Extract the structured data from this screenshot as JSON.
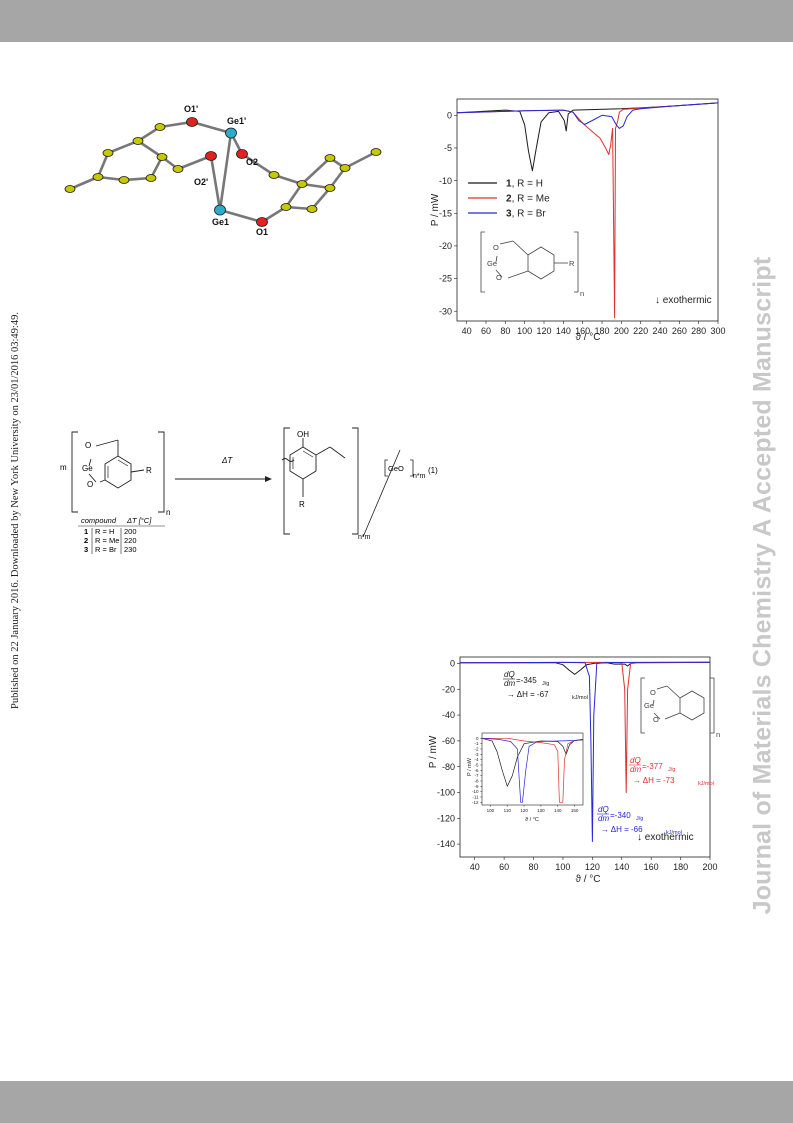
{
  "journal_watermark": "Journal of Materials Chemistry A Accepted Manuscript",
  "publication_note": "Published on 22 January 2016. Downloaded by New York University on 23/01/2016 03:49:49.",
  "crystal_structure": {
    "atom_labels": [
      "O1'",
      "Ge1'",
      "O2",
      "O2'",
      "Ge1",
      "O1"
    ],
    "colors": {
      "carbon": "#c8c800",
      "oxygen": "#e0231e",
      "germanium": "#2eaacb",
      "bond": "#777777"
    }
  },
  "reaction_scheme": {
    "m_label": "m",
    "n_label": "n",
    "ge_label": "Ge",
    "o_label": "O",
    "r_label": "R",
    "arrow_label": "ΔT",
    "oh_label": "OH",
    "product_subscript": "n*m",
    "geo_label": "GeO",
    "equation_number": "(1)",
    "table": {
      "headers": [
        "compound",
        "ΔT [°C]"
      ],
      "rows": [
        {
          "num": "1",
          "r": "R = H",
          "t": "200"
        },
        {
          "num": "2",
          "r": "R = Me",
          "t": "220"
        },
        {
          "num": "3",
          "r": "R = Br",
          "t": "230"
        }
      ]
    }
  },
  "chart_data": [
    {
      "type": "line",
      "xlabel": "ϑ / °C",
      "ylabel": "P / mW",
      "xlim": [
        30,
        300
      ],
      "ylim": [
        -31.5,
        2.5
      ],
      "xticks": [
        40,
        60,
        80,
        100,
        120,
        140,
        160,
        180,
        200,
        220,
        240,
        260,
        280,
        300
      ],
      "yticks": [
        0,
        -5,
        -10,
        -15,
        -20,
        -25,
        -30
      ],
      "legend_position": "middle-left",
      "annotation": "↓ exothermic",
      "n_label": "n",
      "series": [
        {
          "num": "1",
          "name": ", R = H",
          "color": "#1a1a1a",
          "x": [
            30,
            80,
            95,
            100,
            104,
            108,
            112,
            117,
            125,
            135,
            141,
            143,
            145,
            150,
            200,
            250,
            300
          ],
          "y": [
            0.4,
            0.8,
            0.6,
            -1.5,
            -5.5,
            -8.5,
            -5.0,
            -1.0,
            0.4,
            0.6,
            -0.8,
            -2.4,
            0.2,
            0.8,
            1.0,
            1.4,
            1.9
          ]
        },
        {
          "num": "2",
          "name": ", R = Me",
          "color": "#e03030",
          "x": [
            30,
            100,
            140,
            150,
            160,
            170,
            178,
            183,
            187,
            189,
            191,
            193,
            194,
            196,
            198,
            202,
            210,
            250,
            300
          ],
          "y": [
            0.4,
            0.7,
            0.8,
            0.5,
            -1.2,
            -2.5,
            -3.5,
            -4.8,
            -6.0,
            -4.5,
            -2.0,
            -31.0,
            -2.0,
            -1.0,
            0.5,
            0.9,
            1.0,
            1.4,
            1.9
          ]
        },
        {
          "num": "3",
          "name": ", R = Br",
          "color": "#2727d6",
          "x": [
            30,
            100,
            140,
            150,
            156,
            162,
            170,
            180,
            190,
            195,
            198,
            202,
            206,
            212,
            220,
            250,
            300
          ],
          "y": [
            0.4,
            0.7,
            0.8,
            0.5,
            -0.8,
            -1.4,
            -0.8,
            0.0,
            -0.2,
            -1.5,
            -2.0,
            -1.6,
            -0.2,
            0.8,
            1.0,
            1.4,
            1.9
          ]
        }
      ]
    },
    {
      "type": "line",
      "xlabel": "ϑ / °C",
      "ylabel": "P / mW",
      "xlim": [
        30,
        200
      ],
      "ylim": [
        -150,
        5
      ],
      "xticks": [
        40,
        60,
        80,
        100,
        120,
        140,
        160,
        180,
        200
      ],
      "yticks": [
        0,
        -20,
        -40,
        -60,
        -80,
        -100,
        -120,
        -140
      ],
      "annotation": "↓ exothermic",
      "n_label": "n",
      "annotations": [
        {
          "dq": "dQ",
          "dm": "dm",
          "value": "=-345",
          "unit": "J/g",
          "dh": "→ ΔH = -67",
          "dhunit": "kJ/mol",
          "color": "#1a1a1a"
        },
        {
          "dq": "dQ",
          "dm": "dm",
          "value": "=-377",
          "unit": "J/g",
          "dh": "→ ΔH = -73",
          "dhunit": "kJ/mol",
          "color": "#e03030"
        },
        {
          "dq": "dQ",
          "dm": "dm",
          "value": "=-340",
          "unit": "J/g",
          "dh": "→ ΔH = -66",
          "dhunit": "kJ/mol",
          "color": "#2727d6"
        }
      ],
      "series": [
        {
          "color": "#1a1a1a",
          "x": [
            30,
            95,
            100,
            104,
            108,
            112,
            116,
            122,
            130,
            135,
            142,
            144,
            146,
            150,
            200
          ],
          "y": [
            0.5,
            0.5,
            -1.0,
            -5.0,
            -8.5,
            -5.0,
            -1.0,
            0.3,
            0.5,
            -0.5,
            -0.5,
            -2.0,
            0.0,
            0.5,
            0.8
          ]
        },
        {
          "color": "#e03030",
          "x": [
            30,
            100,
            130,
            140,
            142,
            143,
            144,
            146,
            150,
            200
          ],
          "y": [
            0.5,
            0.8,
            0.8,
            0.5,
            -20,
            -100,
            -20,
            0.0,
            0.7,
            1.0
          ]
        },
        {
          "color": "#2727d6",
          "x": [
            30,
            100,
            115,
            118,
            119,
            120,
            121,
            123,
            130,
            200
          ],
          "y": [
            0.5,
            0.8,
            0.6,
            -10,
            -60,
            -138,
            -40,
            0.0,
            0.7,
            1.0
          ]
        }
      ]
    },
    {
      "type": "line",
      "role": "inset",
      "xlabel": "ϑ / °C",
      "ylabel": "P / mW",
      "xlim": [
        95,
        155
      ],
      "ylim": [
        -12.5,
        1
      ],
      "xticks": [
        100,
        110,
        120,
        130,
        140,
        150
      ],
      "yticks": [
        0,
        -1,
        -2,
        -3,
        -4,
        -5,
        -6,
        -7,
        -8,
        -9,
        -10,
        -11,
        -12
      ],
      "series": [
        {
          "color": "#1a1a1a",
          "x": [
            95,
            101,
            104,
            107,
            110,
            113,
            116,
            120,
            130,
            140,
            143,
            145,
            147,
            150,
            155
          ],
          "y": [
            0,
            -0.5,
            -2.5,
            -6.0,
            -9.0,
            -7.0,
            -3.5,
            -1.0,
            -0.5,
            -0.6,
            -1.5,
            -3.0,
            -1.2,
            -0.4,
            -0.3
          ]
        },
        {
          "color": "#e03030",
          "x": [
            95,
            110,
            120,
            130,
            138,
            140,
            141,
            142,
            143,
            144,
            146,
            150,
            155
          ],
          "y": [
            0,
            0,
            -0.5,
            -0.8,
            -1.2,
            -2.5,
            -12,
            -12,
            -12,
            -4.0,
            -1.0,
            -0.4,
            -0.2
          ]
        },
        {
          "color": "#2727d6",
          "x": [
            95,
            105,
            112,
            116,
            117,
            118,
            119,
            121,
            123,
            128,
            140,
            150,
            155
          ],
          "y": [
            0,
            -0.2,
            -0.6,
            -2.0,
            -7.0,
            -12,
            -12,
            -6.0,
            -1.5,
            -0.6,
            -0.5,
            -0.4,
            -0.2
          ]
        }
      ]
    }
  ]
}
